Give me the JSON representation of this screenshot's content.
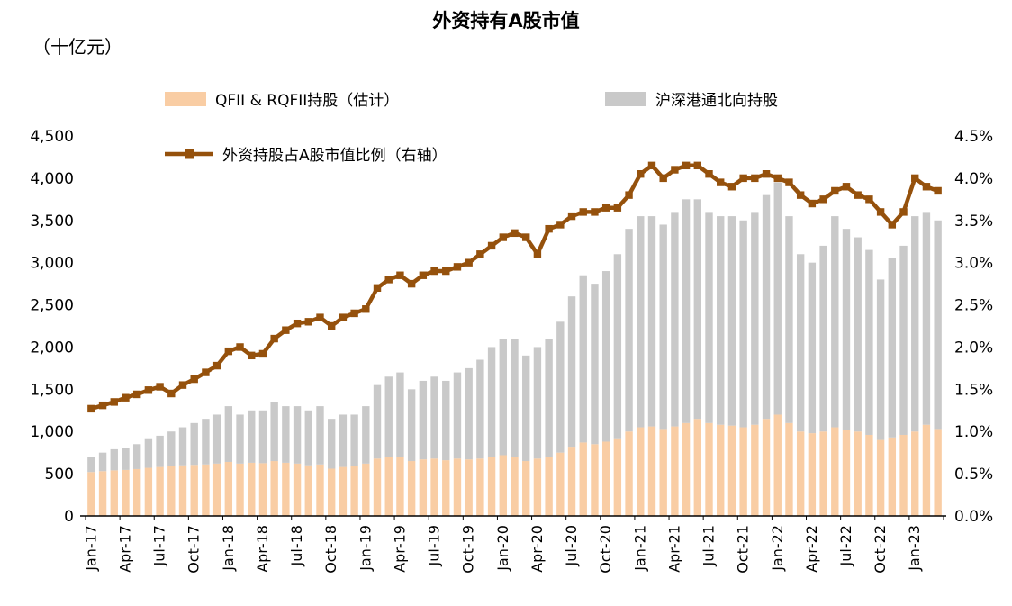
{
  "chart_data": {
    "type": "combo",
    "title": "外资持有A股市值",
    "unit": "（十亿元）",
    "legend_position": "top",
    "grid": false,
    "x_tick_every": 3,
    "categories": [
      "Jan-17",
      "Feb-17",
      "Mar-17",
      "Apr-17",
      "May-17",
      "Jun-17",
      "Jul-17",
      "Aug-17",
      "Sep-17",
      "Oct-17",
      "Nov-17",
      "Dec-17",
      "Jan-18",
      "Feb-18",
      "Mar-18",
      "Apr-18",
      "May-18",
      "Jun-18",
      "Jul-18",
      "Aug-18",
      "Sep-18",
      "Oct-18",
      "Nov-18",
      "Dec-18",
      "Jan-19",
      "Feb-19",
      "Mar-19",
      "Apr-19",
      "May-19",
      "Jun-19",
      "Jul-19",
      "Aug-19",
      "Sep-19",
      "Oct-19",
      "Nov-19",
      "Dec-19",
      "Jan-20",
      "Feb-20",
      "Mar-20",
      "Apr-20",
      "May-20",
      "Jun-20",
      "Jul-20",
      "Aug-20",
      "Sep-20",
      "Oct-20",
      "Nov-20",
      "Dec-20",
      "Jan-21",
      "Feb-21",
      "Mar-21",
      "Apr-21",
      "May-21",
      "Jun-21",
      "Jul-21",
      "Aug-21",
      "Sep-21",
      "Oct-21",
      "Nov-21",
      "Dec-21",
      "Jan-22",
      "Feb-22",
      "Mar-22",
      "Apr-22",
      "May-22",
      "Jun-22",
      "Jul-22",
      "Aug-22",
      "Sep-22",
      "Oct-22",
      "Nov-22",
      "Dec-22",
      "Jan-23",
      "Feb-23",
      "Mar-23"
    ],
    "series": [
      {
        "name": "QFII & RQFII持股（估计）",
        "type": "bar",
        "stack": true,
        "axis": "left",
        "color": "#F9CDA4",
        "values": [
          520,
          530,
          540,
          545,
          555,
          570,
          580,
          590,
          600,
          605,
          610,
          620,
          640,
          620,
          630,
          625,
          650,
          630,
          620,
          600,
          610,
          560,
          580,
          590,
          620,
          680,
          700,
          700,
          650,
          670,
          680,
          660,
          680,
          670,
          680,
          700,
          720,
          700,
          650,
          680,
          700,
          750,
          820,
          870,
          850,
          880,
          920,
          1000,
          1050,
          1060,
          1030,
          1060,
          1100,
          1150,
          1100,
          1080,
          1070,
          1050,
          1080,
          1150,
          1200,
          1100,
          1000,
          980,
          1000,
          1050,
          1020,
          1000,
          960,
          900,
          930,
          960,
          1000,
          1080,
          1030
        ]
      },
      {
        "name": "沪深港通北向持股",
        "type": "bar",
        "stack": true,
        "axis": "left",
        "color": "#C9C9C9",
        "values": [
          180,
          220,
          250,
          255,
          295,
          350,
          370,
          410,
          450,
          495,
          540,
          580,
          660,
          580,
          620,
          625,
          700,
          670,
          680,
          650,
          690,
          590,
          620,
          610,
          680,
          870,
          950,
          1000,
          850,
          930,
          970,
          940,
          1020,
          1080,
          1170,
          1300,
          1380,
          1400,
          1250,
          1320,
          1400,
          1550,
          1780,
          1980,
          1900,
          2020,
          2180,
          2400,
          2500,
          2490,
          2420,
          2540,
          2650,
          2600,
          2500,
          2470,
          2480,
          2450,
          2520,
          2650,
          2750,
          2450,
          2100,
          2020,
          2200,
          2500,
          2380,
          2300,
          2190,
          1900,
          2120,
          2240,
          2550,
          2520,
          2470
        ]
      },
      {
        "name": "外资持股占A股市值比例（右轴）",
        "type": "line",
        "axis": "right",
        "color": "#95510C",
        "values": [
          1.27,
          1.31,
          1.35,
          1.4,
          1.44,
          1.49,
          1.53,
          1.45,
          1.55,
          1.62,
          1.7,
          1.78,
          1.95,
          2.0,
          1.9,
          1.92,
          2.1,
          2.2,
          2.28,
          2.3,
          2.35,
          2.25,
          2.35,
          2.4,
          2.45,
          2.7,
          2.8,
          2.85,
          2.75,
          2.85,
          2.9,
          2.9,
          2.95,
          3.0,
          3.1,
          3.2,
          3.3,
          3.35,
          3.3,
          3.1,
          3.4,
          3.45,
          3.55,
          3.6,
          3.6,
          3.65,
          3.65,
          3.8,
          4.05,
          4.15,
          4.0,
          4.1,
          4.15,
          4.15,
          4.05,
          3.95,
          3.9,
          4.0,
          4.0,
          4.05,
          4.0,
          3.95,
          3.8,
          3.7,
          3.75,
          3.85,
          3.9,
          3.8,
          3.75,
          3.6,
          3.45,
          3.6,
          4.0,
          3.9,
          3.85
        ]
      }
    ],
    "left_axis": {
      "min": 0,
      "max": 4500,
      "step": 500,
      "tick_labels": [
        "0",
        "500",
        "1,000",
        "1,500",
        "2,000",
        "2,500",
        "3,000",
        "3,500",
        "4,000",
        "4,500"
      ]
    },
    "right_axis": {
      "min": 0,
      "max": 4.5,
      "step": 0.5,
      "tick_labels": [
        "0.0%",
        "0.5%",
        "1.0%",
        "1.5%",
        "2.0%",
        "2.5%",
        "3.0%",
        "3.5%",
        "4.0%",
        "4.5%"
      ]
    }
  }
}
